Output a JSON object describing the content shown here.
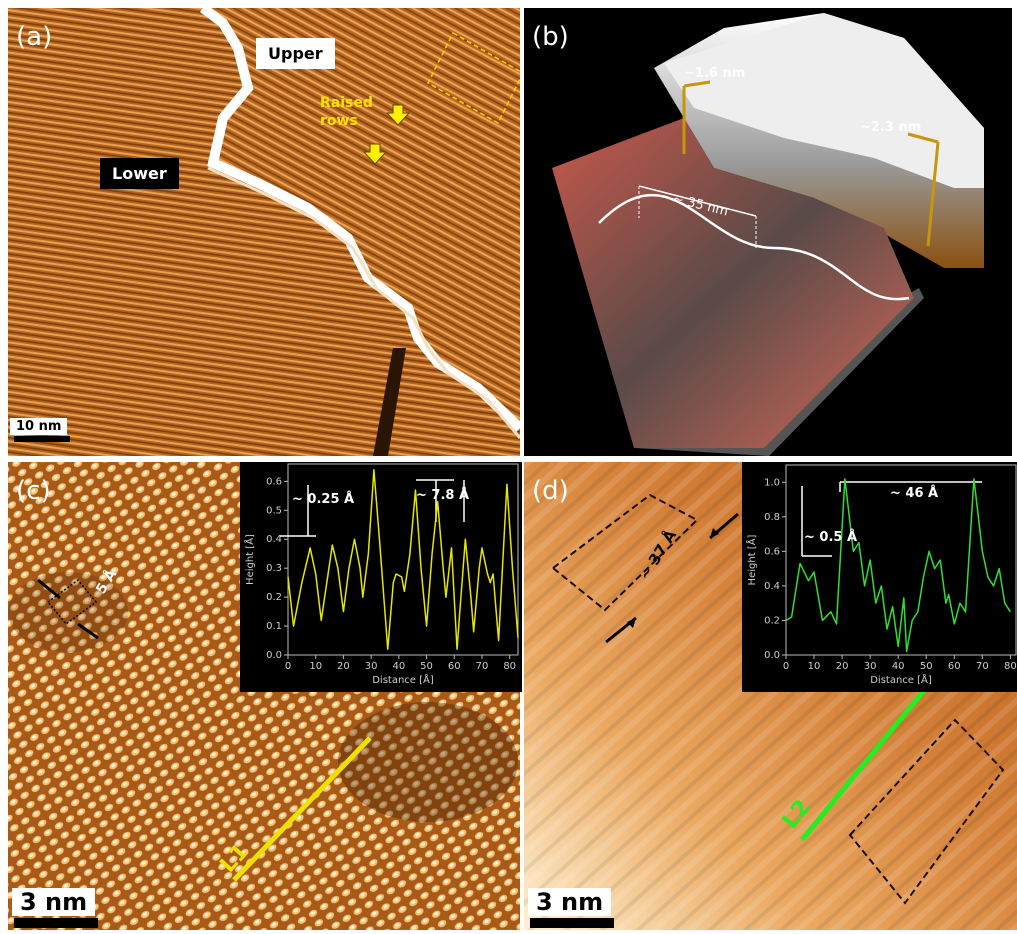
{
  "panels": {
    "a": {
      "label": "(a)",
      "upper": "Upper",
      "lower": "Lower",
      "raised_rows": "Raised rows",
      "scale_bar": "10 nm"
    },
    "b": {
      "label": "(b)",
      "step_low": "~1.6 nm",
      "step_high": "~2.3 nm",
      "width": "~ 35 nm"
    },
    "c": {
      "label": "(c)",
      "spacing": "5 Å",
      "line": "L1",
      "scale_bar": "3 nm",
      "height_diff": "~ 0.25 Å",
      "period": "~ 7.8 Å"
    },
    "d": {
      "label": "(d)",
      "spacing": "~ 37 Å",
      "line": "L2",
      "scale_bar": "3 nm",
      "height_diff": "~ 0.5 Å",
      "period": "~ 46 Å"
    }
  },
  "chart_data": [
    {
      "type": "line",
      "color": "#e6e600",
      "xlabel": "Distance [Å]",
      "ylabel": "Height [Å]",
      "x": [
        0,
        2,
        5,
        8,
        10,
        12,
        14,
        16,
        18,
        20,
        22,
        24,
        26,
        27,
        29,
        31,
        33,
        36,
        38,
        39,
        41,
        42,
        44,
        46,
        48,
        50,
        52,
        54,
        56,
        57,
        59,
        61,
        62,
        64,
        66,
        67,
        69,
        70,
        72,
        73,
        74,
        76,
        79,
        81,
        83
      ],
      "values": [
        0.27,
        0.1,
        0.25,
        0.37,
        0.28,
        0.12,
        0.25,
        0.38,
        0.3,
        0.15,
        0.3,
        0.4,
        0.3,
        0.2,
        0.35,
        0.64,
        0.4,
        0.02,
        0.25,
        0.28,
        0.27,
        0.22,
        0.35,
        0.57,
        0.3,
        0.1,
        0.35,
        0.53,
        0.3,
        0.2,
        0.37,
        0.02,
        0.15,
        0.4,
        0.2,
        0.08,
        0.3,
        0.37,
        0.28,
        0.25,
        0.28,
        0.05,
        0.59,
        0.3,
        0.06
      ],
      "xlim": [
        0,
        83
      ],
      "ylim": [
        0,
        0.66
      ],
      "xticks": [
        0,
        10,
        20,
        30,
        40,
        50,
        60,
        70,
        80
      ],
      "yticks": [
        {
          "value": 0,
          "label": "0.0"
        },
        0.1,
        0.2,
        0.3,
        0.4,
        0.5,
        0.6
      ]
    },
    {
      "type": "line",
      "color": "#33dd33",
      "xlabel": "Distance [Å]",
      "ylabel": "Height [Å]",
      "x": [
        0,
        2,
        5,
        8,
        10,
        13,
        16,
        18,
        21,
        24,
        26,
        28,
        30,
        32,
        34,
        36,
        38,
        40,
        42,
        43,
        45,
        47,
        49,
        51,
        53,
        55,
        57,
        58,
        60,
        62,
        64,
        67,
        70,
        72,
        74,
        76,
        78,
        80
      ],
      "values": [
        0.2,
        0.22,
        0.53,
        0.43,
        0.48,
        0.2,
        0.25,
        0.18,
        1.02,
        0.6,
        0.65,
        0.4,
        0.55,
        0.3,
        0.4,
        0.15,
        0.28,
        0.05,
        0.33,
        0.02,
        0.2,
        0.25,
        0.45,
        0.6,
        0.5,
        0.55,
        0.3,
        0.35,
        0.18,
        0.3,
        0.25,
        1.02,
        0.6,
        0.45,
        0.4,
        0.5,
        0.3,
        0.25
      ],
      "xlim": [
        0,
        82
      ],
      "ylim": [
        0,
        1.1
      ],
      "xticks": [
        0,
        10,
        20,
        30,
        40,
        50,
        60,
        70,
        80
      ],
      "yticks": [
        {
          "value": 0,
          "label": "0.0"
        },
        0.2,
        0.4,
        0.6,
        0.8,
        {
          "value": 1,
          "label": "1.0"
        }
      ]
    }
  ]
}
